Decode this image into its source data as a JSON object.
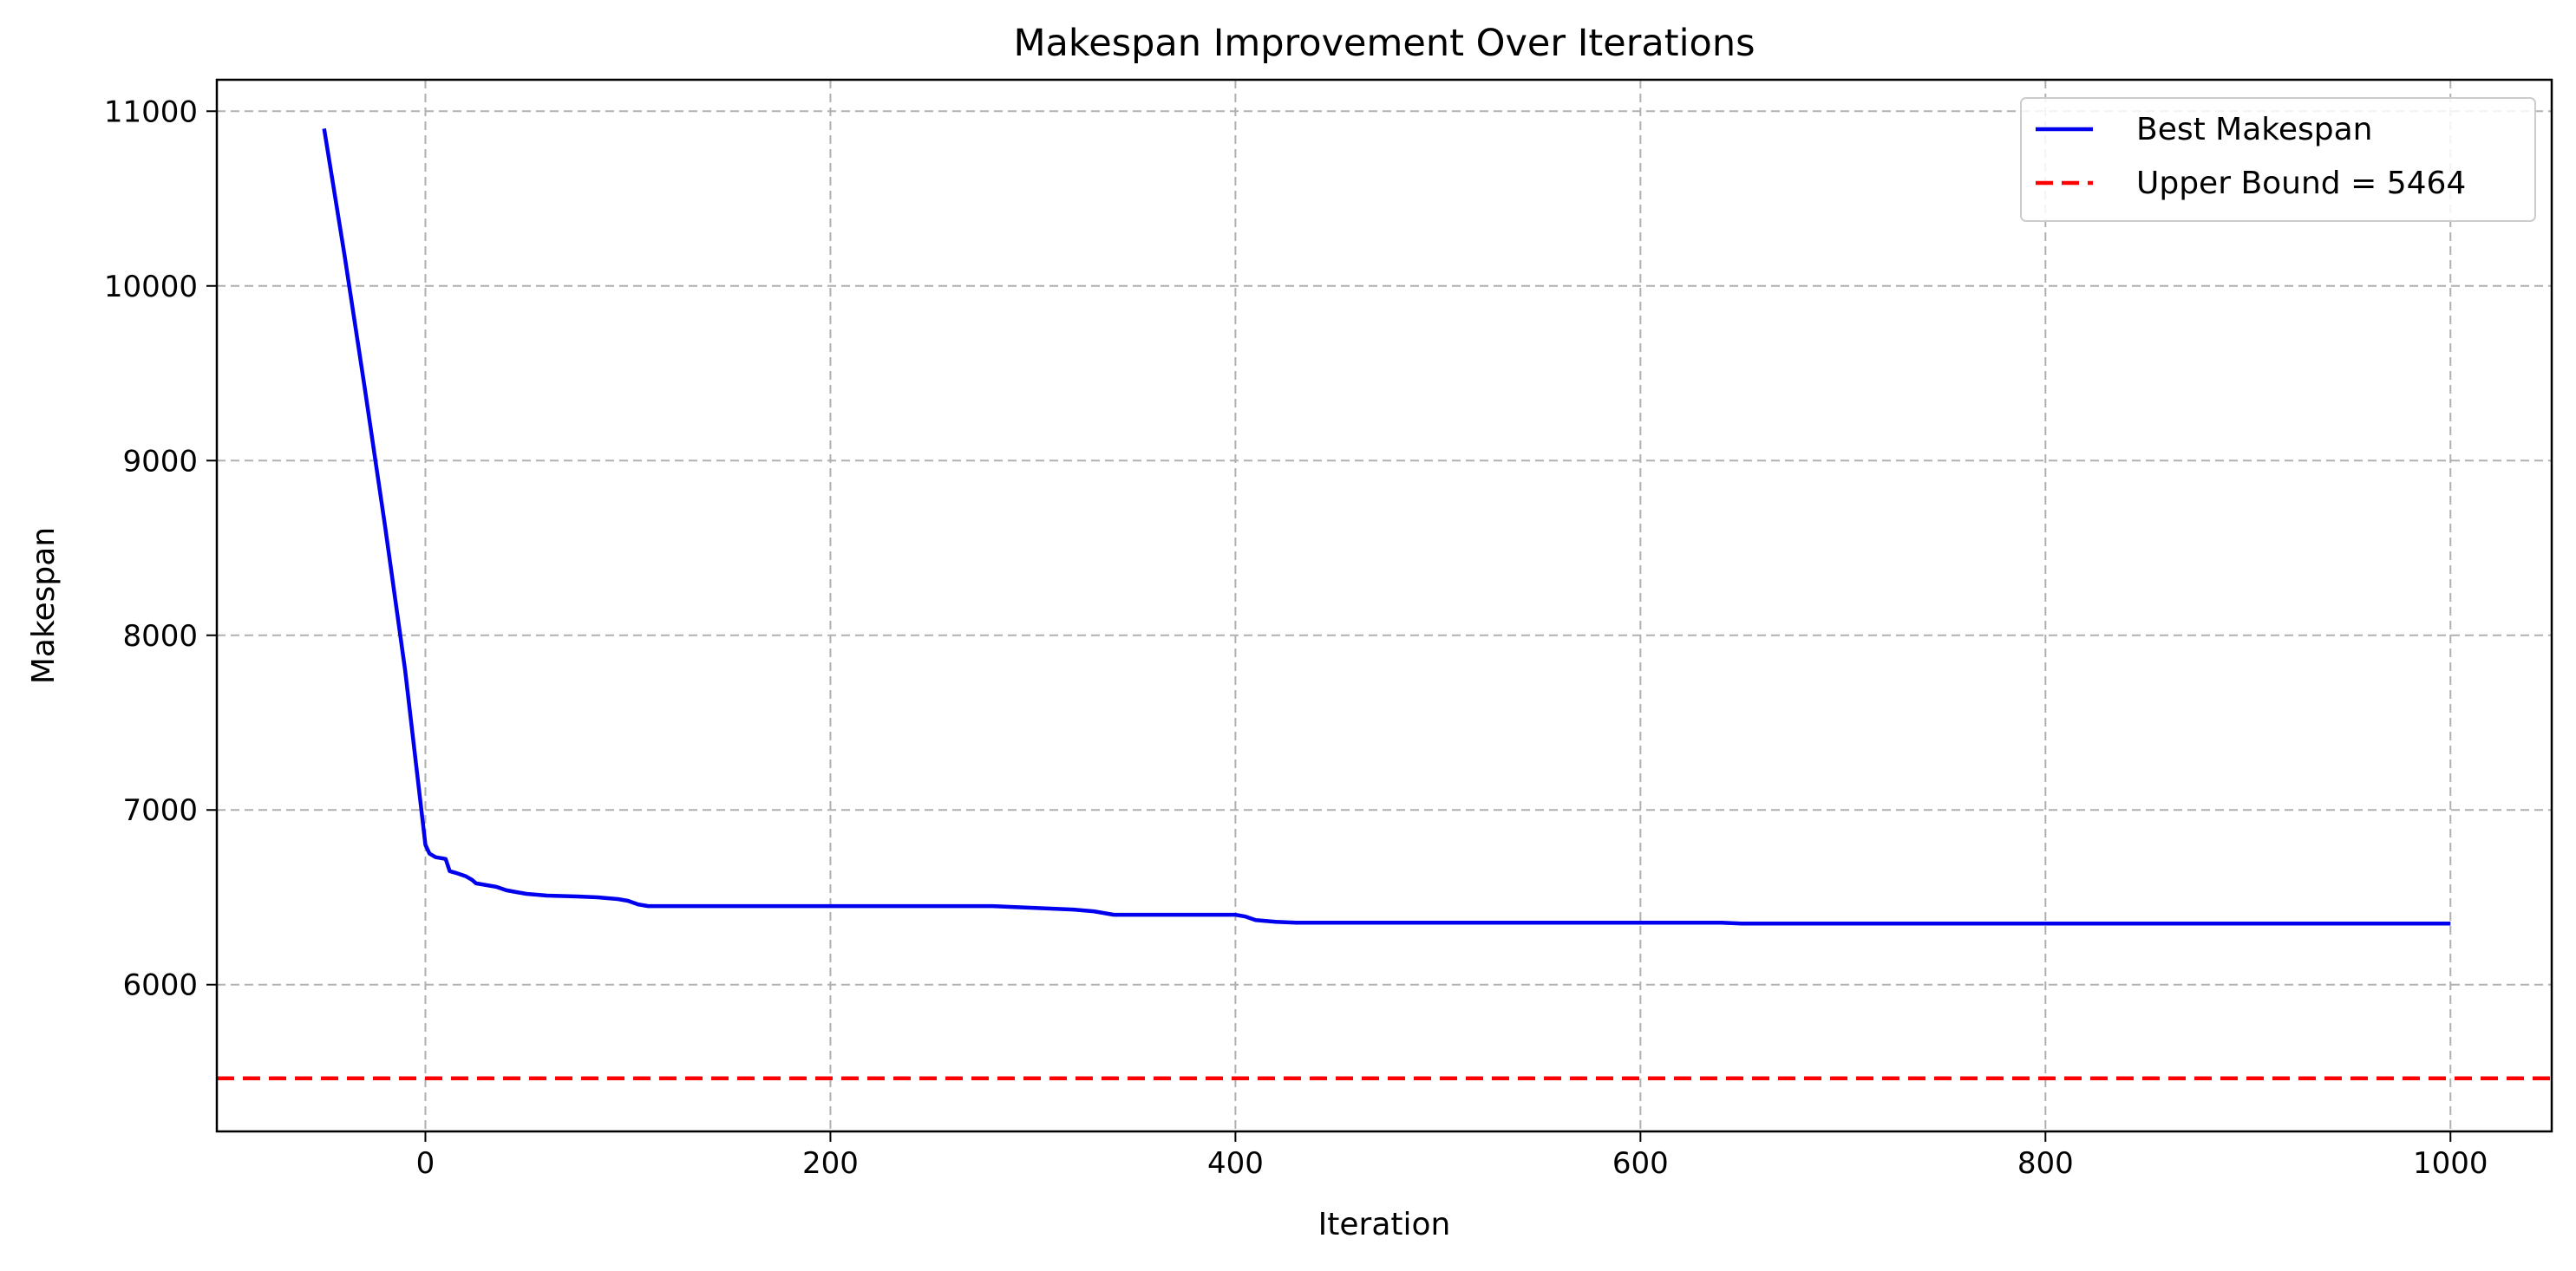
{
  "chart_data": {
    "type": "line",
    "title": "Makespan Improvement Over Iterations",
    "xlabel": "Iteration",
    "ylabel": "Makespan",
    "xlim": [
      -103,
      1050
    ],
    "ylim": [
      5160,
      11180
    ],
    "xticks": [
      0,
      200,
      400,
      600,
      800,
      1000
    ],
    "yticks": [
      6000,
      7000,
      8000,
      9000,
      10000,
      11000
    ],
    "grid": true,
    "legend_position": "top-right",
    "series": [
      {
        "name": "Best Makespan",
        "color": "#0000ee",
        "style": "solid",
        "x": [
          -50,
          -40,
          -30,
          -20,
          -10,
          0,
          2,
          5,
          10,
          12,
          15,
          20,
          23,
          25,
          30,
          35,
          40,
          45,
          50,
          60,
          75,
          85,
          95,
          100,
          105,
          110,
          120,
          140,
          200,
          250,
          280,
          290,
          300,
          310,
          320,
          330,
          335,
          340,
          360,
          400,
          405,
          410,
          420,
          430,
          500,
          600,
          640,
          650,
          700,
          800,
          900,
          1000
        ],
        "y": [
          10900,
          10180,
          9420,
          8630,
          7800,
          6800,
          6750,
          6730,
          6720,
          6650,
          6640,
          6620,
          6600,
          6580,
          6570,
          6560,
          6540,
          6530,
          6520,
          6510,
          6505,
          6500,
          6490,
          6480,
          6460,
          6450,
          6450,
          6450,
          6450,
          6450,
          6450,
          6445,
          6440,
          6435,
          6430,
          6420,
          6410,
          6400,
          6400,
          6400,
          6390,
          6370,
          6360,
          6355,
          6355,
          6355,
          6355,
          6350,
          6350,
          6350,
          6350,
          6350
        ]
      },
      {
        "name": "Upper Bound = 5464",
        "color": "#ff0000",
        "style": "dashed",
        "y_constant": 5464
      }
    ]
  }
}
